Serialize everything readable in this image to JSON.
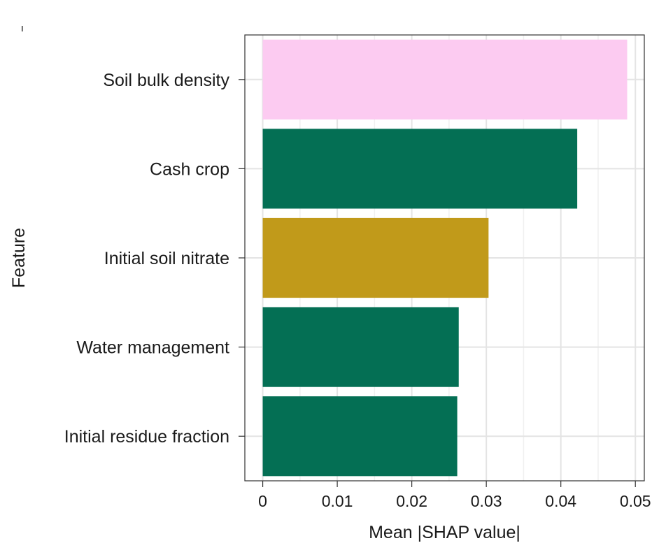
{
  "chart_data": {
    "type": "bar",
    "orientation": "horizontal",
    "categories": [
      "Soil bulk density",
      "Cash crop",
      "Initial soil nitrate",
      "Water management",
      "Initial residue fraction"
    ],
    "values": [
      0.0489,
      0.0422,
      0.0303,
      0.0263,
      0.0261
    ],
    "colors": [
      "#fccbf1",
      "#046f54",
      "#c19a1a",
      "#046f54",
      "#046f54"
    ],
    "xlabel": "Mean |SHAP value|",
    "ylabel": "Feature",
    "xlim": [
      -0.0024,
      0.0512
    ],
    "xticks": [
      0,
      0.01,
      0.02,
      0.03,
      0.04,
      0.05
    ],
    "xtick_labels": [
      "0",
      "0.01",
      "0.02",
      "0.03",
      "0.04",
      "0.05"
    ],
    "grid": true
  }
}
